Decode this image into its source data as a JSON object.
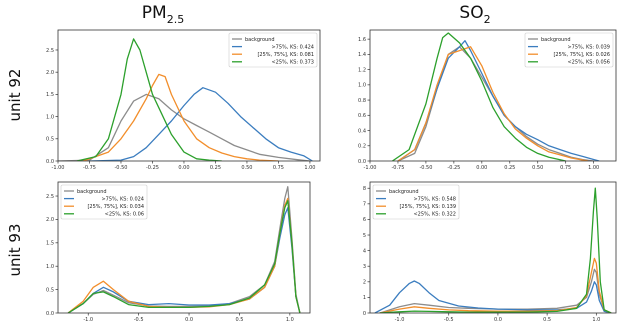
{
  "figure": {
    "col_titles": [
      {
        "main": "PM",
        "sub": "2.5"
      },
      {
        "main": "SO",
        "sub": "2"
      }
    ],
    "row_labels": [
      "unit 92",
      "unit 93"
    ]
  },
  "colors": {
    "background": "#8c8c8c",
    "above_75": "#3b7dbf",
    "q25_75": "#f28e2b",
    "below_25": "#2ca02c"
  },
  "chart_data": [
    {
      "type": "line",
      "panel": "unit 92 PM2.5",
      "xlim": [
        -1.0,
        1.08
      ],
      "ylim": [
        0,
        2.95
      ],
      "xticks": [
        -1.0,
        -0.75,
        -0.5,
        -0.25,
        0.0,
        0.25,
        0.5,
        0.75,
        1.0
      ],
      "xtick_labels": [
        "-1.00",
        "-0.75",
        "-0.50",
        "-0.25",
        "0.00",
        "0.25",
        "0.50",
        "0.75",
        "1.00"
      ],
      "yticks": [
        0.0,
        0.5,
        1.0,
        1.5,
        2.0,
        2.5
      ],
      "ytick_labels": [
        "0.0",
        "0.5",
        "1.0",
        "1.5",
        "2.0",
        "2.5"
      ],
      "legend_position": "top-right",
      "series": [
        {
          "name": "background",
          "x": [
            -1.0,
            -0.75,
            -0.6,
            -0.5,
            -0.4,
            -0.3,
            -0.2,
            -0.1,
            0.0,
            0.1,
            0.2,
            0.3,
            0.4,
            0.5,
            0.6,
            0.75,
            0.9,
            1.0
          ],
          "y": [
            0.0,
            0.02,
            0.3,
            0.9,
            1.35,
            1.5,
            1.4,
            1.15,
            0.95,
            0.8,
            0.65,
            0.5,
            0.35,
            0.25,
            0.15,
            0.08,
            0.03,
            0.0
          ]
        },
        {
          "name": ">75%, KS: 0.424",
          "x": [
            -0.75,
            -0.5,
            -0.4,
            -0.3,
            -0.2,
            -0.1,
            0.0,
            0.08,
            0.15,
            0.25,
            0.35,
            0.45,
            0.55,
            0.65,
            0.75,
            0.85,
            0.95,
            1.02
          ],
          "y": [
            0.0,
            0.02,
            0.1,
            0.3,
            0.6,
            0.9,
            1.25,
            1.5,
            1.65,
            1.55,
            1.3,
            1.0,
            0.75,
            0.5,
            0.3,
            0.2,
            0.12,
            0.0
          ]
        },
        {
          "name": "[25%, 75%], KS: 0.081",
          "x": [
            -0.8,
            -0.6,
            -0.5,
            -0.4,
            -0.3,
            -0.25,
            -0.2,
            -0.15,
            -0.1,
            0.0,
            0.1,
            0.2,
            0.3,
            0.4,
            0.5,
            0.6,
            0.75
          ],
          "y": [
            0.0,
            0.2,
            0.5,
            0.9,
            1.4,
            1.7,
            1.95,
            1.9,
            1.5,
            0.9,
            0.5,
            0.3,
            0.18,
            0.1,
            0.05,
            0.02,
            0.0
          ]
        },
        {
          "name": "<25%, KS: 0.373",
          "x": [
            -0.85,
            -0.7,
            -0.6,
            -0.5,
            -0.45,
            -0.4,
            -0.35,
            -0.3,
            -0.25,
            -0.2,
            -0.1,
            0.0,
            0.1,
            0.2,
            0.3
          ],
          "y": [
            0.0,
            0.1,
            0.5,
            1.5,
            2.3,
            2.75,
            2.5,
            2.0,
            1.5,
            1.2,
            0.6,
            0.2,
            0.05,
            0.02,
            0.0
          ]
        }
      ]
    },
    {
      "type": "line",
      "panel": "unit 92 SO2",
      "xlim": [
        -1.0,
        1.2
      ],
      "ylim": [
        0,
        1.72
      ],
      "xticks": [
        -1.0,
        -0.75,
        -0.5,
        -0.25,
        0.0,
        0.25,
        0.5,
        0.75,
        1.0
      ],
      "xtick_labels": [
        "-1.00",
        "-0.75",
        "-0.50",
        "-0.25",
        "0.00",
        "0.25",
        "0.50",
        "0.75",
        "1.00"
      ],
      "yticks": [
        0.0,
        0.2,
        0.4,
        0.6,
        0.8,
        1.0,
        1.2,
        1.4,
        1.6
      ],
      "ytick_labels": [
        "0.0",
        "0.2",
        "0.4",
        "0.6",
        "0.8",
        "1.0",
        "1.2",
        "1.4",
        "1.6"
      ],
      "legend_position": "top-right",
      "series": [
        {
          "name": "background",
          "x": [
            -0.75,
            -0.6,
            -0.5,
            -0.4,
            -0.3,
            -0.2,
            -0.1,
            0.0,
            0.1,
            0.2,
            0.3,
            0.4,
            0.5,
            0.6,
            0.7,
            0.8,
            0.9,
            1.0
          ],
          "y": [
            0.0,
            0.1,
            0.45,
            0.95,
            1.4,
            1.5,
            1.35,
            1.1,
            0.85,
            0.6,
            0.45,
            0.32,
            0.22,
            0.15,
            0.1,
            0.05,
            0.02,
            0.0
          ]
        },
        {
          "name": ">75%, KS: 0.039",
          "x": [
            -0.75,
            -0.6,
            -0.5,
            -0.4,
            -0.3,
            -0.2,
            -0.15,
            -0.1,
            0.0,
            0.1,
            0.2,
            0.3,
            0.4,
            0.5,
            0.6,
            0.7,
            0.8,
            0.9,
            1.0,
            1.05
          ],
          "y": [
            0.0,
            0.15,
            0.5,
            0.95,
            1.35,
            1.5,
            1.58,
            1.45,
            1.15,
            0.85,
            0.6,
            0.45,
            0.35,
            0.28,
            0.2,
            0.15,
            0.1,
            0.06,
            0.02,
            0.0
          ]
        },
        {
          "name": "[25%, 75%], KS: 0.026",
          "x": [
            -0.75,
            -0.6,
            -0.5,
            -0.4,
            -0.3,
            -0.2,
            -0.1,
            0.0,
            0.1,
            0.2,
            0.3,
            0.4,
            0.5,
            0.6,
            0.7,
            0.8,
            0.95
          ],
          "y": [
            0.0,
            0.15,
            0.5,
            1.0,
            1.4,
            1.45,
            1.5,
            1.25,
            0.9,
            0.62,
            0.42,
            0.3,
            0.2,
            0.12,
            0.08,
            0.04,
            0.0
          ]
        },
        {
          "name": "<25%, KS: 0.056",
          "x": [
            -0.8,
            -0.65,
            -0.5,
            -0.4,
            -0.35,
            -0.3,
            -0.2,
            -0.1,
            0.0,
            0.1,
            0.2,
            0.3,
            0.4,
            0.5,
            0.6,
            0.75
          ],
          "y": [
            0.0,
            0.15,
            0.75,
            1.35,
            1.62,
            1.68,
            1.55,
            1.35,
            1.05,
            0.7,
            0.45,
            0.3,
            0.18,
            0.1,
            0.05,
            0.0
          ]
        }
      ]
    },
    {
      "type": "line",
      "panel": "unit 93 PM2.5",
      "xlim": [
        -1.3,
        1.2
      ],
      "ylim": [
        0,
        2.8
      ],
      "xticks": [
        -1.0,
        -0.5,
        0.0,
        0.5,
        1.0
      ],
      "xtick_labels": [
        "-1.0",
        "-0.5",
        "0.0",
        "0.5",
        "1.0"
      ],
      "yticks": [
        0.0,
        0.5,
        1.0,
        1.5,
        2.0,
        2.5
      ],
      "ytick_labels": [
        "0.0",
        "0.5",
        "1.0",
        "1.5",
        "2.0",
        "2.5"
      ],
      "legend_position": "top-left",
      "series": [
        {
          "name": "background",
          "x": [
            -1.2,
            -1.05,
            -0.95,
            -0.85,
            -0.75,
            -0.6,
            -0.4,
            -0.2,
            0.0,
            0.2,
            0.4,
            0.6,
            0.75,
            0.85,
            0.9,
            0.95,
            0.98,
            1.02,
            1.06,
            1.1
          ],
          "y": [
            0.0,
            0.2,
            0.4,
            0.48,
            0.38,
            0.22,
            0.15,
            0.14,
            0.14,
            0.15,
            0.2,
            0.35,
            0.6,
            1.1,
            1.8,
            2.45,
            2.7,
            1.6,
            0.4,
            0.0
          ]
        },
        {
          "name": ">75%, KS: 0.024",
          "x": [
            -1.2,
            -1.05,
            -0.95,
            -0.85,
            -0.75,
            -0.6,
            -0.4,
            -0.2,
            0.0,
            0.2,
            0.4,
            0.6,
            0.75,
            0.85,
            0.9,
            0.95,
            0.98,
            1.02,
            1.06,
            1.1
          ],
          "y": [
            0.0,
            0.2,
            0.42,
            0.55,
            0.45,
            0.25,
            0.18,
            0.2,
            0.17,
            0.17,
            0.2,
            0.3,
            0.55,
            1.0,
            1.6,
            2.1,
            2.25,
            1.4,
            0.35,
            0.0
          ]
        },
        {
          "name": "[25%, 75%], KS: 0.034",
          "x": [
            -1.2,
            -1.05,
            -0.95,
            -0.85,
            -0.75,
            -0.6,
            -0.4,
            -0.2,
            0.0,
            0.2,
            0.4,
            0.6,
            0.75,
            0.85,
            0.9,
            0.95,
            0.98,
            1.02,
            1.06,
            1.1
          ],
          "y": [
            0.0,
            0.25,
            0.55,
            0.68,
            0.5,
            0.25,
            0.14,
            0.12,
            0.12,
            0.13,
            0.18,
            0.3,
            0.55,
            1.0,
            1.7,
            2.3,
            2.45,
            1.5,
            0.35,
            0.0
          ]
        },
        {
          "name": "<25%, KS: 0.06",
          "x": [
            -1.2,
            -1.05,
            -0.95,
            -0.85,
            -0.75,
            -0.6,
            -0.4,
            -0.2,
            0.0,
            0.2,
            0.4,
            0.6,
            0.75,
            0.85,
            0.9,
            0.95,
            0.98,
            1.02,
            1.06,
            1.1
          ],
          "y": [
            0.0,
            0.2,
            0.42,
            0.45,
            0.35,
            0.18,
            0.12,
            0.12,
            0.12,
            0.14,
            0.18,
            0.32,
            0.6,
            1.05,
            1.7,
            2.25,
            2.4,
            1.5,
            0.35,
            0.0
          ]
        }
      ]
    },
    {
      "type": "line",
      "panel": "unit 93 SO2",
      "xlim": [
        -1.3,
        1.2
      ],
      "ylim": [
        0,
        8.4
      ],
      "xticks": [
        -1.0,
        -0.5,
        0.0,
        0.5,
        1.0
      ],
      "xtick_labels": [
        "-1.0",
        "-0.5",
        "0.0",
        "0.5",
        "1.0"
      ],
      "yticks": [
        0,
        1,
        2,
        3,
        4,
        5,
        6,
        7,
        8
      ],
      "ytick_labels": [
        "0",
        "1",
        "2",
        "3",
        "4",
        "5",
        "6",
        "7",
        "8"
      ],
      "legend_position": "top-left",
      "series": [
        {
          "name": "background",
          "x": [
            -1.2,
            -1.0,
            -0.85,
            -0.7,
            -0.5,
            -0.3,
            0.0,
            0.3,
            0.6,
            0.8,
            0.9,
            0.95,
            0.98,
            1.0,
            1.03,
            1.08,
            1.15
          ],
          "y": [
            0.0,
            0.4,
            0.6,
            0.5,
            0.35,
            0.3,
            0.25,
            0.25,
            0.3,
            0.5,
            1.0,
            2.0,
            2.8,
            2.6,
            1.2,
            0.2,
            0.0
          ]
        },
        {
          "name": ">75%, KS: 0.548",
          "x": [
            -1.25,
            -1.1,
            -1.0,
            -0.9,
            -0.85,
            -0.8,
            -0.7,
            -0.6,
            -0.4,
            -0.2,
            0.0,
            0.3,
            0.6,
            0.8,
            0.9,
            0.95,
            0.98,
            1.0,
            1.03,
            1.08,
            1.15
          ],
          "y": [
            0.0,
            0.5,
            1.3,
            1.9,
            2.05,
            1.9,
            1.3,
            0.8,
            0.45,
            0.32,
            0.25,
            0.2,
            0.2,
            0.3,
            0.7,
            1.4,
            2.0,
            1.8,
            0.8,
            0.1,
            0.0
          ]
        },
        {
          "name": "[25%, 75%], KS: 0.139",
          "x": [
            -1.2,
            -1.0,
            -0.85,
            -0.7,
            -0.5,
            -0.3,
            0.0,
            0.3,
            0.6,
            0.8,
            0.9,
            0.95,
            0.98,
            1.0,
            1.03,
            1.08,
            1.15
          ],
          "y": [
            0.0,
            0.25,
            0.4,
            0.3,
            0.2,
            0.15,
            0.12,
            0.12,
            0.15,
            0.35,
            1.1,
            2.6,
            3.5,
            3.2,
            1.4,
            0.2,
            0.0
          ]
        },
        {
          "name": "<25%, KS: 0.322",
          "x": [
            -1.2,
            -1.0,
            -0.85,
            -0.7,
            -0.5,
            -0.3,
            0.0,
            0.3,
            0.6,
            0.8,
            0.9,
            0.94,
            0.97,
            0.99,
            1.01,
            1.04,
            1.08,
            1.15
          ],
          "y": [
            0.0,
            0.08,
            0.12,
            0.1,
            0.08,
            0.06,
            0.05,
            0.06,
            0.1,
            0.3,
            1.2,
            3.5,
            6.5,
            8.0,
            6.0,
            2.0,
            0.2,
            0.0
          ]
        }
      ]
    }
  ]
}
